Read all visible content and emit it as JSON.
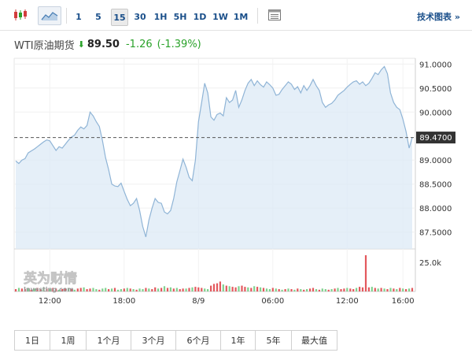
{
  "toolbar": {
    "chart_type_icons": [
      "candlestick-icon",
      "area-chart-icon"
    ],
    "intervals": [
      {
        "label": "1",
        "active": false
      },
      {
        "label": "5",
        "active": false
      },
      {
        "label": "15",
        "active": true
      },
      {
        "label": "30",
        "active": false
      },
      {
        "label": "1H",
        "active": false
      },
      {
        "label": "5H",
        "active": false
      },
      {
        "label": "1D",
        "active": false
      },
      {
        "label": "1W",
        "active": false
      },
      {
        "label": "1M",
        "active": false
      }
    ],
    "tools_icon": "table-icon",
    "tech_chart_label": "技术图表 »"
  },
  "quote": {
    "name": "WTI原油期货",
    "arrow": "down-arrow-icon",
    "price": "89.50",
    "change": "-1.26",
    "change_pct": "(-1.39%)",
    "change_color": "#2aa22a"
  },
  "watermark": {
    "text_cn": "英为财情",
    "text_en": "Investing.com"
  },
  "chart_data": {
    "type": "area",
    "ylim": [
      87.15,
      91.12
    ],
    "yticks": [
      "91.0000",
      "90.5000",
      "90.0000",
      "89.0000",
      "88.5000",
      "88.0000",
      "87.5000"
    ],
    "ytick_values": [
      91.0,
      90.5,
      90.0,
      89.0,
      88.5,
      88.0,
      87.5
    ],
    "current_price_label": "89.4700",
    "current_price": 89.47,
    "xticks": [
      "12:00",
      "18:00",
      "8/9",
      "06:00",
      "12:00",
      "16:00"
    ],
    "xtick_index": [
      11,
      35,
      59,
      83,
      107,
      125
    ],
    "volume_label": "25.0k",
    "volume_label_value": 25000,
    "volume_max": 31000,
    "series": [
      {
        "values": [
          88.98,
          88.93,
          89.0,
          89.03,
          89.15,
          89.19,
          89.23,
          89.28,
          89.33,
          89.38,
          89.42,
          89.4,
          89.3,
          89.2,
          89.28,
          89.25,
          89.33,
          89.41,
          89.48,
          89.52,
          89.62,
          89.69,
          89.65,
          89.72,
          90.0,
          89.92,
          89.8,
          89.7,
          89.4,
          89.05,
          88.8,
          88.5,
          88.46,
          88.45,
          88.52,
          88.35,
          88.18,
          88.05,
          88.1,
          88.2,
          87.95,
          87.62,
          87.4,
          87.75,
          88.0,
          88.2,
          88.12,
          88.1,
          87.92,
          87.88,
          87.95,
          88.2,
          88.55,
          88.78,
          89.02,
          88.85,
          88.64,
          88.57,
          89.0,
          89.8,
          90.2,
          90.6,
          90.4,
          89.9,
          89.83,
          89.95,
          89.98,
          89.92,
          90.3,
          90.2,
          90.25,
          90.45,
          90.1,
          90.25,
          90.45,
          90.6,
          90.68,
          90.55,
          90.65,
          90.57,
          90.52,
          90.63,
          90.57,
          90.5,
          90.35,
          90.37,
          90.47,
          90.55,
          90.63,
          90.58,
          90.47,
          90.53,
          90.4,
          90.55,
          90.45,
          90.55,
          90.68,
          90.55,
          90.45,
          90.2,
          90.1,
          90.15,
          90.18,
          90.25,
          90.35,
          90.4,
          90.45,
          90.52,
          90.58,
          90.63,
          90.65,
          90.58,
          90.63,
          90.55,
          90.6,
          90.7,
          90.82,
          90.78,
          90.88,
          90.95,
          90.8,
          90.4,
          90.2,
          90.1,
          90.05,
          89.85,
          89.6,
          89.25,
          89.47
        ]
      }
    ],
    "volume": [
      2000,
      3000,
      2500,
      2000,
      3000,
      1500,
      2500,
      3000,
      2000,
      3500,
      2500,
      2000,
      3000,
      2500,
      1500,
      2000,
      2500,
      3000,
      2000,
      1500,
      2500,
      3000,
      3500,
      2000,
      2500,
      3000,
      2000,
      1500,
      2500,
      3000,
      2000,
      2500,
      3000,
      1500,
      2000,
      2500,
      3000,
      2500,
      2000,
      1500,
      2500,
      2000,
      3000,
      2500,
      2000,
      3500,
      2500,
      3000,
      4500,
      3000,
      3500,
      2500,
      3000,
      2000,
      2500,
      2500,
      3000,
      3500,
      4000,
      3500,
      3000,
      2500,
      2000,
      5000,
      6500,
      7000,
      8500,
      6000,
      5000,
      4500,
      4000,
      3500,
      4500,
      5000,
      4000,
      3500,
      3000,
      4500,
      4000,
      3500,
      3000,
      2500,
      2000,
      3000,
      2500,
      2000,
      1500,
      2000,
      2500,
      2000,
      1500,
      2500,
      2000,
      1500,
      2000,
      2500,
      3000,
      2000,
      1500,
      2500,
      2000,
      1500,
      2000,
      2500,
      3000,
      2000,
      2500,
      3000,
      2500,
      2000,
      3000,
      4000,
      3500,
      31000,
      3500,
      4000,
      3000,
      2500,
      3000,
      2500,
      2000,
      3000,
      2500,
      2000,
      3000,
      2500,
      2000,
      2500,
      3000
    ],
    "volume_direction": [
      1,
      0,
      1,
      1,
      0,
      1,
      0,
      1,
      1,
      0,
      1,
      0,
      1,
      1,
      0,
      1,
      1,
      0,
      1,
      0,
      1,
      1,
      0,
      1,
      1,
      0,
      0,
      1,
      0,
      0,
      1,
      0,
      1,
      0,
      0,
      1,
      0,
      1,
      0,
      1,
      0,
      0,
      1,
      0,
      1,
      1,
      0,
      1,
      0,
      1,
      0,
      1,
      0,
      1,
      1,
      0,
      1,
      0,
      1,
      1,
      1,
      0,
      0,
      1,
      1,
      1,
      1,
      0,
      1,
      0,
      1,
      1,
      0,
      1,
      1,
      0,
      1,
      0,
      1,
      0,
      1,
      0,
      0,
      1,
      0,
      1,
      0,
      1,
      0,
      1,
      0,
      1,
      0,
      1,
      0,
      1,
      1,
      0,
      1,
      0,
      0,
      1,
      0,
      1,
      0,
      1,
      1,
      0,
      1,
      1,
      0,
      1,
      1,
      1,
      1,
      0,
      1,
      0,
      1,
      0,
      1,
      0,
      1,
      0,
      1,
      0,
      1,
      0,
      1
    ]
  },
  "timeframes": [
    "1日",
    "1周",
    "1个月",
    "3个月",
    "6个月",
    "1年",
    "5年",
    "最大值"
  ]
}
